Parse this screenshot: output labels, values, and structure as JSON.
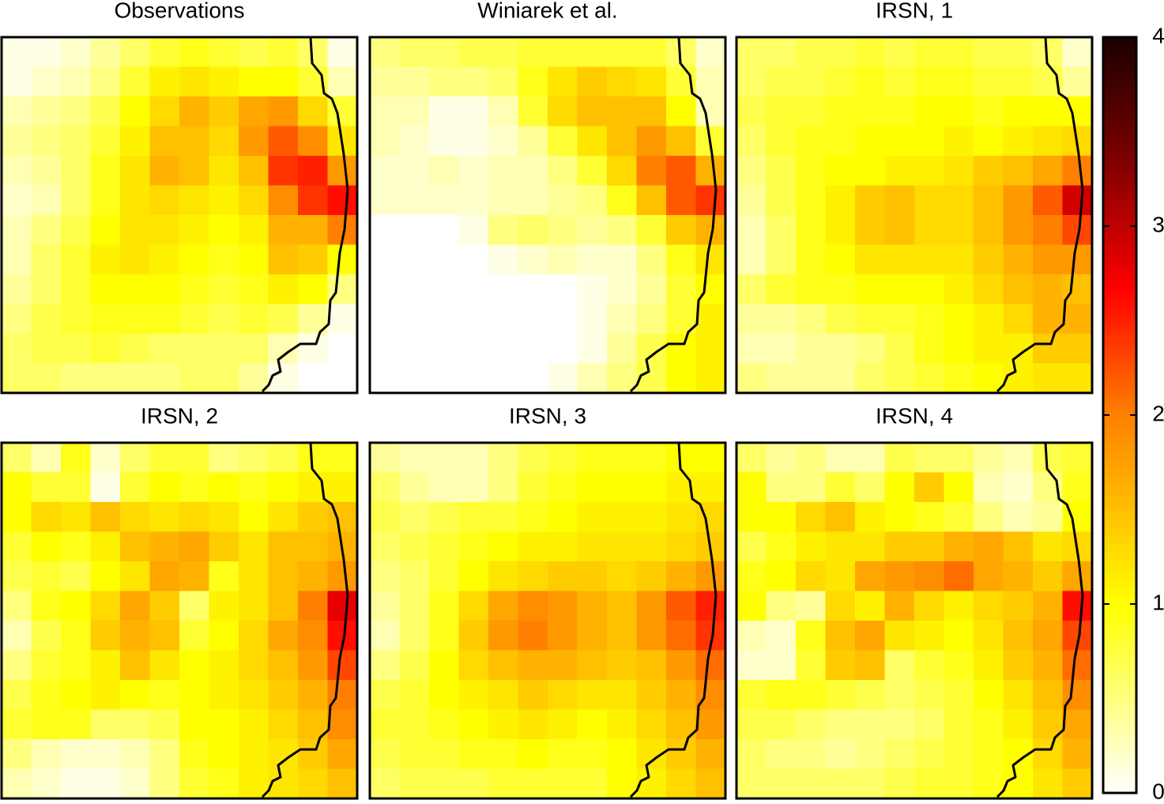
{
  "chart_data": {
    "type": "heatmap",
    "colormap": [
      [
        0,
        "#ffffff"
      ],
      [
        1,
        "#ffff00"
      ],
      [
        2,
        "#ff8000"
      ],
      [
        2.67,
        "#ff0000"
      ],
      [
        3.33,
        "#800000"
      ],
      [
        4,
        "#1a0000"
      ]
    ],
    "colorbar": {
      "lim": [
        0,
        4
      ],
      "ticks": [
        0,
        1,
        2,
        3,
        4
      ]
    },
    "panels": [
      {
        "title": "Observations",
        "values": [
          [
            0.1,
            0.1,
            0.2,
            0.4,
            0.6,
            0.8,
            0.9,
            0.8,
            0.7,
            0.8,
            0.6,
            0.1
          ],
          [
            0.1,
            0.2,
            0.3,
            0.5,
            0.8,
            1.1,
            1.2,
            1.1,
            1.0,
            1.0,
            0.8,
            0.3
          ],
          [
            0.3,
            0.4,
            0.5,
            0.7,
            1.0,
            1.3,
            1.6,
            1.4,
            1.7,
            1.8,
            1.3,
            0.8
          ],
          [
            0.4,
            0.5,
            0.6,
            0.8,
            1.1,
            1.5,
            1.5,
            1.3,
            1.8,
            2.2,
            1.9,
            1.2
          ],
          [
            0.3,
            0.4,
            0.6,
            0.9,
            1.2,
            1.6,
            1.5,
            1.2,
            1.5,
            2.4,
            2.5,
            1.8
          ],
          [
            0.2,
            0.3,
            0.6,
            0.9,
            1.2,
            1.3,
            1.2,
            1.1,
            1.3,
            1.9,
            2.4,
            2.6
          ],
          [
            0.3,
            0.5,
            0.7,
            1.0,
            1.2,
            1.2,
            1.1,
            1.0,
            1.1,
            1.6,
            1.6,
            2.0
          ],
          [
            0.3,
            0.6,
            0.8,
            1.1,
            1.2,
            1.1,
            1.0,
            0.9,
            1.0,
            1.5,
            1.4,
            1.0
          ],
          [
            0.4,
            0.6,
            0.8,
            1.0,
            1.0,
            1.0,
            0.9,
            0.8,
            0.9,
            1.1,
            1.0,
            0.5
          ],
          [
            0.5,
            0.7,
            0.8,
            0.9,
            0.9,
            0.9,
            0.8,
            0.7,
            0.8,
            0.7,
            0.4,
            0.1
          ],
          [
            0.6,
            0.7,
            0.7,
            0.8,
            0.7,
            0.6,
            0.6,
            0.6,
            0.6,
            0.3,
            0.1,
            0.0
          ],
          [
            0.6,
            0.6,
            0.5,
            0.5,
            0.5,
            0.5,
            0.6,
            0.6,
            0.4,
            0.1,
            0.0,
            0.0
          ]
        ]
      },
      {
        "title": "Winiarek et al.",
        "values": [
          [
            0.5,
            0.6,
            0.6,
            0.7,
            0.7,
            0.8,
            0.8,
            0.8,
            0.8,
            0.8,
            0.6,
            0.2
          ],
          [
            0.4,
            0.4,
            0.5,
            0.5,
            0.6,
            0.9,
            1.2,
            1.4,
            1.3,
            1.2,
            0.8,
            0.3
          ],
          [
            0.3,
            0.3,
            0.1,
            0.1,
            0.3,
            0.8,
            1.3,
            1.5,
            1.5,
            1.5,
            1.0,
            0.3
          ],
          [
            0.3,
            0.2,
            0.1,
            0.1,
            0.2,
            0.4,
            0.8,
            1.2,
            1.5,
            1.8,
            1.5,
            0.8
          ],
          [
            0.2,
            0.2,
            0.3,
            0.2,
            0.3,
            0.3,
            0.5,
            0.8,
            1.3,
            2.0,
            2.2,
            1.6
          ],
          [
            0.2,
            0.2,
            0.2,
            0.2,
            0.3,
            0.3,
            0.4,
            0.5,
            0.9,
            1.5,
            2.2,
            2.4
          ],
          [
            0.0,
            0.0,
            0.0,
            0.1,
            0.5,
            0.6,
            0.5,
            0.4,
            0.5,
            0.8,
            1.4,
            1.6
          ],
          [
            0.0,
            0.0,
            0.0,
            0.0,
            0.1,
            0.2,
            0.3,
            0.2,
            0.2,
            0.5,
            0.9,
            1.2
          ],
          [
            0.0,
            0.0,
            0.0,
            0.0,
            0.0,
            0.0,
            0.0,
            0.1,
            0.2,
            0.4,
            0.8,
            1.0
          ],
          [
            0.0,
            0.0,
            0.0,
            0.0,
            0.0,
            0.0,
            0.0,
            0.1,
            0.3,
            0.5,
            0.8,
            1.1
          ],
          [
            0.0,
            0.0,
            0.0,
            0.0,
            0.0,
            0.0,
            0.0,
            0.1,
            0.4,
            0.7,
            1.0,
            1.1
          ],
          [
            0.0,
            0.0,
            0.0,
            0.0,
            0.0,
            0.0,
            0.1,
            0.3,
            0.5,
            0.7,
            1.0,
            1.1
          ]
        ]
      },
      {
        "title": "IRSN, 1",
        "values": [
          [
            0.6,
            0.6,
            0.7,
            0.7,
            0.8,
            0.7,
            0.8,
            0.8,
            0.7,
            0.7,
            0.6,
            0.2
          ],
          [
            0.6,
            0.7,
            0.7,
            0.8,
            0.9,
            0.8,
            0.9,
            0.9,
            0.8,
            0.8,
            0.7,
            0.4
          ],
          [
            0.7,
            0.8,
            0.8,
            0.9,
            0.9,
            0.9,
            1.0,
            1.0,
            0.9,
            1.0,
            1.0,
            1.0
          ],
          [
            0.6,
            0.8,
            0.9,
            0.9,
            1.0,
            1.0,
            1.0,
            1.1,
            1.0,
            1.1,
            1.2,
            1.3
          ],
          [
            0.5,
            0.7,
            0.9,
            1.0,
            1.0,
            1.1,
            1.1,
            1.2,
            1.4,
            1.5,
            1.7,
            2.0
          ],
          [
            0.4,
            0.7,
            0.9,
            1.1,
            1.4,
            1.5,
            1.3,
            1.3,
            1.5,
            1.8,
            2.2,
            2.9
          ],
          [
            0.3,
            0.6,
            0.9,
            1.1,
            1.4,
            1.5,
            1.3,
            1.3,
            1.5,
            1.8,
            2.0,
            2.3
          ],
          [
            0.3,
            0.6,
            0.9,
            1.0,
            1.2,
            1.2,
            1.2,
            1.2,
            1.4,
            1.6,
            1.8,
            1.8
          ],
          [
            0.6,
            0.8,
            0.9,
            0.9,
            1.0,
            1.0,
            1.0,
            1.1,
            1.3,
            1.5,
            1.6,
            1.5
          ],
          [
            0.4,
            0.4,
            0.5,
            0.7,
            0.8,
            0.8,
            0.9,
            1.0,
            1.1,
            1.3,
            1.6,
            1.6
          ],
          [
            0.3,
            0.3,
            0.4,
            0.4,
            0.5,
            0.7,
            0.9,
            1.0,
            1.1,
            1.1,
            1.4,
            1.4
          ],
          [
            0.5,
            0.4,
            0.4,
            0.4,
            0.6,
            0.7,
            0.8,
            0.9,
            1.0,
            1.1,
            1.2,
            1.2
          ]
        ]
      },
      {
        "title": "IRSN, 2",
        "values": [
          [
            0.6,
            0.3,
            0.9,
            0.2,
            0.6,
            0.8,
            0.8,
            0.5,
            0.6,
            0.7,
            0.9,
            0.9
          ],
          [
            1.0,
            0.8,
            0.8,
            0.1,
            0.8,
            1.0,
            0.9,
            1.0,
            0.9,
            1.0,
            1.1,
            1.1
          ],
          [
            1.0,
            1.3,
            1.2,
            1.5,
            1.3,
            1.2,
            1.3,
            1.2,
            1.0,
            1.2,
            1.4,
            1.5
          ],
          [
            0.8,
            1.0,
            0.9,
            1.1,
            1.5,
            1.6,
            1.7,
            1.4,
            1.2,
            1.5,
            1.5,
            1.6
          ],
          [
            0.7,
            0.8,
            0.7,
            1.0,
            1.2,
            1.7,
            1.6,
            0.9,
            1.2,
            1.5,
            1.6,
            1.8
          ],
          [
            0.5,
            0.9,
            1.0,
            1.3,
            1.7,
            1.4,
            0.6,
            1.1,
            1.2,
            1.5,
            2.0,
            2.8
          ],
          [
            0.3,
            0.7,
            0.9,
            1.4,
            1.6,
            1.5,
            0.8,
            1.0,
            1.3,
            1.7,
            1.9,
            2.6
          ],
          [
            0.5,
            0.8,
            0.9,
            1.1,
            1.5,
            1.2,
            1.0,
            1.1,
            1.3,
            1.5,
            1.8,
            2.3
          ],
          [
            0.7,
            0.9,
            1.0,
            1.1,
            1.0,
            0.9,
            1.0,
            1.1,
            1.2,
            1.4,
            1.6,
            2.0
          ],
          [
            0.8,
            0.9,
            0.9,
            0.6,
            0.6,
            0.7,
            1.0,
            1.0,
            1.1,
            1.3,
            1.5,
            1.9
          ],
          [
            0.5,
            0.3,
            0.2,
            0.2,
            0.3,
            0.5,
            0.9,
            1.0,
            1.1,
            1.2,
            1.4,
            1.7
          ],
          [
            0.3,
            0.2,
            0.1,
            0.1,
            0.2,
            0.5,
            0.8,
            0.9,
            1.1,
            1.2,
            1.3,
            1.5
          ]
        ]
      },
      {
        "title": "IRSN, 3",
        "values": [
          [
            0.4,
            0.3,
            0.3,
            0.3,
            0.5,
            0.7,
            0.8,
            0.9,
            0.9,
            0.9,
            1.0,
            1.0
          ],
          [
            0.6,
            0.4,
            0.3,
            0.3,
            0.5,
            0.8,
            0.9,
            1.0,
            1.0,
            1.0,
            1.1,
            1.1
          ],
          [
            0.7,
            0.6,
            0.7,
            0.8,
            0.8,
            0.9,
            1.0,
            1.1,
            1.1,
            1.1,
            1.2,
            1.3
          ],
          [
            0.6,
            0.7,
            0.8,
            0.9,
            1.0,
            1.1,
            1.1,
            1.2,
            1.2,
            1.2,
            1.3,
            1.4
          ],
          [
            0.5,
            0.6,
            0.8,
            1.0,
            1.2,
            1.3,
            1.4,
            1.4,
            1.3,
            1.4,
            1.6,
            1.8
          ],
          [
            0.4,
            0.6,
            0.9,
            1.3,
            1.7,
            1.9,
            1.8,
            1.6,
            1.5,
            1.8,
            2.2,
            2.5
          ],
          [
            0.3,
            0.6,
            0.9,
            1.4,
            1.8,
            2.0,
            1.8,
            1.6,
            1.5,
            1.8,
            2.1,
            2.4
          ],
          [
            0.5,
            0.7,
            1.0,
            1.3,
            1.5,
            1.6,
            1.6,
            1.5,
            1.4,
            1.5,
            1.8,
            2.1
          ],
          [
            0.7,
            0.8,
            1.0,
            1.1,
            1.2,
            1.4,
            1.3,
            1.2,
            1.2,
            1.4,
            1.6,
            1.9
          ],
          [
            0.8,
            0.8,
            0.9,
            1.0,
            1.1,
            1.2,
            1.1,
            1.0,
            1.1,
            1.3,
            1.5,
            1.8
          ],
          [
            0.7,
            0.8,
            0.8,
            0.9,
            0.9,
            1.0,
            0.9,
            0.9,
            1.0,
            1.2,
            1.4,
            1.6
          ],
          [
            0.6,
            0.7,
            0.7,
            0.7,
            0.8,
            0.8,
            0.8,
            0.8,
            1.0,
            1.1,
            1.3,
            1.5
          ]
        ]
      },
      {
        "title": "IRSN, 4",
        "values": [
          [
            0.6,
            0.4,
            0.5,
            0.3,
            0.3,
            0.7,
            0.6,
            0.6,
            0.4,
            0.3,
            0.7,
            0.8
          ],
          [
            1.0,
            0.5,
            0.5,
            0.8,
            0.6,
            1.0,
            1.4,
            1.0,
            0.3,
            0.2,
            0.5,
            0.9
          ],
          [
            1.0,
            1.0,
            1.3,
            1.5,
            1.1,
            1.0,
            0.9,
            0.8,
            0.5,
            0.3,
            0.4,
            1.0
          ],
          [
            0.7,
            0.9,
            1.1,
            1.2,
            1.2,
            1.4,
            1.4,
            1.6,
            1.7,
            1.5,
            1.2,
            1.3
          ],
          [
            0.9,
            1.0,
            1.3,
            1.2,
            1.7,
            1.8,
            1.9,
            2.1,
            1.7,
            1.6,
            1.4,
            1.7
          ],
          [
            1.0,
            0.5,
            0.4,
            1.3,
            1.1,
            1.6,
            1.3,
            1.1,
            1.3,
            1.4,
            1.6,
            2.6
          ],
          [
            0.3,
            0.2,
            0.9,
            1.5,
            1.7,
            1.2,
            1.1,
            1.0,
            1.2,
            1.5,
            1.7,
            2.3
          ],
          [
            0.2,
            0.2,
            0.8,
            1.4,
            1.5,
            0.6,
            0.8,
            0.9,
            1.1,
            1.4,
            1.6,
            2.1
          ],
          [
            0.8,
            0.9,
            0.9,
            0.8,
            0.7,
            0.6,
            0.7,
            0.8,
            1.0,
            1.2,
            1.5,
            1.9
          ],
          [
            0.7,
            0.7,
            0.6,
            0.5,
            0.5,
            0.5,
            0.6,
            0.8,
            0.9,
            1.1,
            1.4,
            1.7
          ],
          [
            0.6,
            0.5,
            0.5,
            0.4,
            0.5,
            0.6,
            0.7,
            0.8,
            0.9,
            1.0,
            1.3,
            1.6
          ],
          [
            0.6,
            0.6,
            0.6,
            0.6,
            0.6,
            0.7,
            0.8,
            0.8,
            0.9,
            1.0,
            1.2,
            1.4
          ]
        ]
      }
    ]
  }
}
